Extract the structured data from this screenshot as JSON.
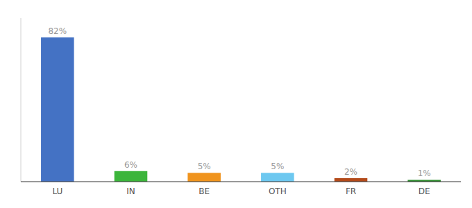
{
  "chart_data": {
    "type": "bar",
    "categories": [
      "LU",
      "IN",
      "BE",
      "OTH",
      "FR",
      "DE"
    ],
    "values": [
      82,
      6,
      5,
      5,
      2,
      1
    ],
    "value_labels": [
      "82%",
      "6%",
      "5%",
      "5%",
      "2%",
      "1%"
    ],
    "colors": [
      "#4472c4",
      "#3cb53b",
      "#f0941e",
      "#6dc8f0",
      "#b34a1a",
      "#2d8c2d"
    ],
    "ylim": [
      0,
      93
    ],
    "data_labels": true,
    "tick_labels": "x",
    "grid": false
  }
}
